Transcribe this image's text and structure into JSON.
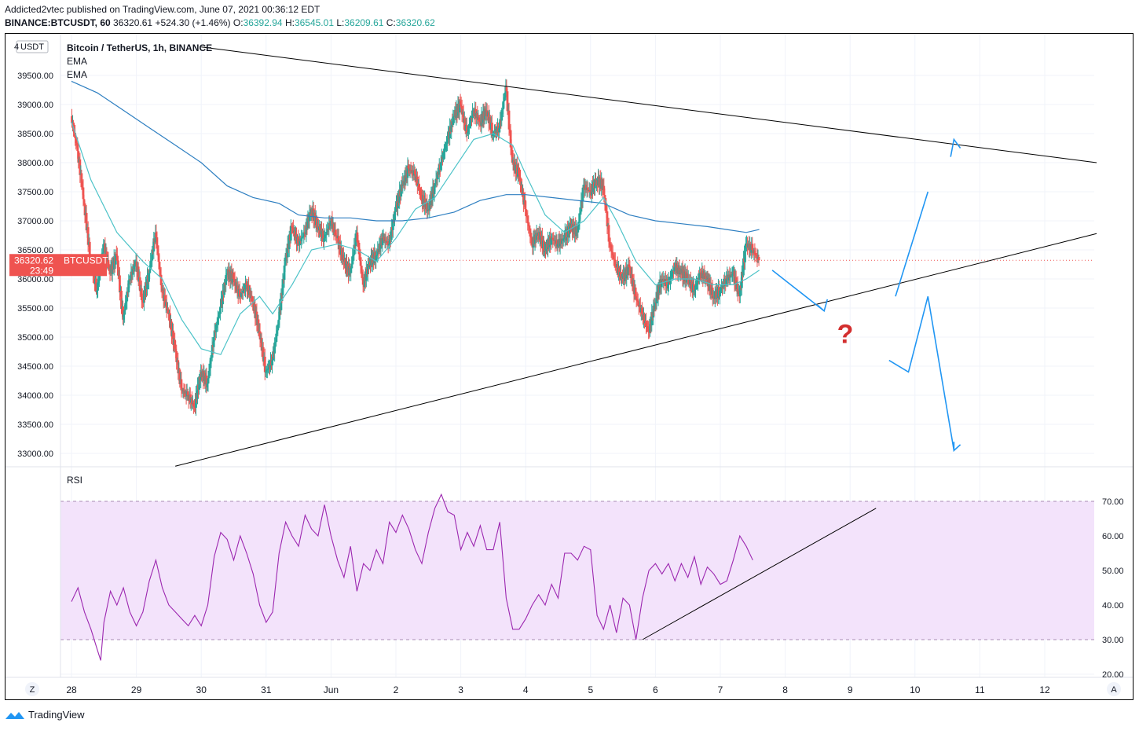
{
  "header": {
    "line1": "Addicted2vtec published on TradingView.com, June 07, 2021 00:36:12 EDT",
    "symbol": "BINANCE:BTCUSDT, 60",
    "last": "36320.61",
    "change": "+524.30 (+1.46%)",
    "o_label": "O:",
    "o": "36392.94",
    "h_label": "H:",
    "h": "36545.01",
    "l_label": "L:",
    "l": "36209.61",
    "c_label": "C:",
    "c": "36320.62"
  },
  "legend": {
    "title": "Bitcoin / TetherUS, 1h, BINANCE",
    "ema1": "EMA",
    "ema2": "EMA"
  },
  "price_axis": {
    "currency": "USDT",
    "top_partial": "4",
    "last_price": "36320.62",
    "last_symbol": "BTCUSDT",
    "countdown": "23:49"
  },
  "rsi": {
    "label": "RSI"
  },
  "footer": {
    "brand": "TradingView",
    "z_button": "Z",
    "a_button": "A"
  },
  "colors": {
    "up": "#26a69a",
    "down": "#ef5350",
    "ema_fast": "#4dc3c8",
    "ema_slow": "#2e7fc1",
    "rsi_line": "#9c27b0",
    "rsi_band": "#f3e3fb",
    "projection": "#2196f3",
    "question": "#d32f2f"
  },
  "chart_data": [
    {
      "type": "candlestick",
      "title": "Bitcoin / TetherUS, 1h, BINANCE",
      "ylabel": "USDT",
      "ylim": [
        32800,
        39900
      ],
      "x_ticks": [
        "28",
        "29",
        "30",
        "31",
        "Jun",
        "2",
        "3",
        "4",
        "5",
        "6",
        "7",
        "8",
        "9",
        "10",
        "11",
        "12"
      ],
      "y_ticks": [
        "33000.00",
        "33500.00",
        "34000.00",
        "34500.00",
        "35000.00",
        "35500.00",
        "36000.00",
        "36500.00",
        "37000.00",
        "37500.00",
        "38000.00",
        "38500.00",
        "39000.00",
        "39500.00"
      ],
      "close_path": [
        [
          27.9,
          38800
        ],
        [
          28.0,
          38200
        ],
        [
          28.1,
          37300
        ],
        [
          28.2,
          36300
        ],
        [
          28.3,
          35800
        ],
        [
          28.4,
          36600
        ],
        [
          28.5,
          36100
        ],
        [
          28.6,
          36400
        ],
        [
          28.7,
          35300
        ],
        [
          28.8,
          36000
        ],
        [
          28.9,
          36300
        ],
        [
          29.0,
          35600
        ],
        [
          29.1,
          36100
        ],
        [
          29.2,
          36800
        ],
        [
          29.3,
          35800
        ],
        [
          29.4,
          35400
        ],
        [
          29.5,
          34800
        ],
        [
          29.6,
          34100
        ],
        [
          29.7,
          34000
        ],
        [
          29.8,
          33800
        ],
        [
          29.9,
          34400
        ],
        [
          30.0,
          34200
        ],
        [
          30.1,
          35000
        ],
        [
          30.2,
          35500
        ],
        [
          30.3,
          36100
        ],
        [
          30.4,
          36000
        ],
        [
          30.5,
          35700
        ],
        [
          30.6,
          35900
        ],
        [
          30.7,
          35600
        ],
        [
          30.8,
          35100
        ],
        [
          30.9,
          34400
        ],
        [
          31.0,
          34600
        ],
        [
          31.1,
          35300
        ],
        [
          31.2,
          36300
        ],
        [
          31.3,
          36900
        ],
        [
          31.4,
          36600
        ],
        [
          31.5,
          36800
        ],
        [
          31.6,
          37200
        ],
        [
          31.7,
          36900
        ],
        [
          31.8,
          36700
        ],
        [
          31.9,
          37000
        ],
        [
          32.0,
          36700
        ],
        [
          32.1,
          36300
        ],
        [
          32.2,
          36100
        ],
        [
          32.3,
          36800
        ],
        [
          32.4,
          35900
        ],
        [
          32.5,
          36300
        ],
        [
          32.6,
          36400
        ],
        [
          32.7,
          36700
        ],
        [
          32.8,
          36600
        ],
        [
          32.9,
          37200
        ],
        [
          33.0,
          37600
        ],
        [
          33.1,
          37900
        ],
        [
          33.2,
          37800
        ],
        [
          33.3,
          37400
        ],
        [
          33.4,
          37200
        ],
        [
          33.5,
          37600
        ],
        [
          33.6,
          38000
        ],
        [
          33.7,
          38400
        ],
        [
          33.8,
          38800
        ],
        [
          33.9,
          39000
        ],
        [
          34.0,
          38500
        ],
        [
          34.1,
          38900
        ],
        [
          34.2,
          38700
        ],
        [
          34.3,
          38900
        ],
        [
          34.4,
          38500
        ],
        [
          34.5,
          38600
        ],
        [
          34.6,
          39300
        ],
        [
          34.7,
          38000
        ],
        [
          34.8,
          37800
        ],
        [
          34.9,
          37200
        ],
        [
          35.0,
          36600
        ],
        [
          35.1,
          36800
        ],
        [
          35.2,
          36500
        ],
        [
          35.3,
          36700
        ],
        [
          35.4,
          36600
        ],
        [
          35.5,
          36700
        ],
        [
          35.6,
          36900
        ],
        [
          35.7,
          36800
        ],
        [
          35.8,
          37600
        ],
        [
          35.9,
          37500
        ],
        [
          36.0,
          37700
        ],
        [
          36.1,
          37600
        ],
        [
          36.2,
          36600
        ],
        [
          36.3,
          36200
        ],
        [
          36.4,
          36000
        ],
        [
          36.5,
          36200
        ],
        [
          36.6,
          35700
        ],
        [
          36.7,
          35400
        ],
        [
          36.8,
          35100
        ],
        [
          36.9,
          35600
        ],
        [
          37.0,
          36000
        ],
        [
          37.1,
          35900
        ],
        [
          37.2,
          36200
        ],
        [
          37.3,
          36100
        ],
        [
          37.4,
          36000
        ],
        [
          37.5,
          35800
        ],
        [
          37.6,
          36100
        ],
        [
          37.7,
          36000
        ],
        [
          37.8,
          35700
        ],
        [
          37.9,
          35800
        ],
        [
          38.0,
          36000
        ],
        [
          38.1,
          36100
        ],
        [
          38.2,
          35700
        ],
        [
          38.3,
          36600
        ],
        [
          38.4,
          36500
        ],
        [
          38.5,
          36320
        ]
      ],
      "ema_fast_path": [
        [
          27.9,
          38700
        ],
        [
          28.2,
          37700
        ],
        [
          28.6,
          36800
        ],
        [
          29.0,
          36300
        ],
        [
          29.3,
          36000
        ],
        [
          29.6,
          35300
        ],
        [
          29.9,
          34800
        ],
        [
          30.2,
          34700
        ],
        [
          30.5,
          35400
        ],
        [
          30.8,
          35700
        ],
        [
          31.0,
          35400
        ],
        [
          31.3,
          35900
        ],
        [
          31.6,
          36500
        ],
        [
          32.0,
          36600
        ],
        [
          32.3,
          36500
        ],
        [
          32.6,
          36300
        ],
        [
          32.9,
          36700
        ],
        [
          33.2,
          37200
        ],
        [
          33.5,
          37400
        ],
        [
          33.8,
          37900
        ],
        [
          34.1,
          38400
        ],
        [
          34.4,
          38500
        ],
        [
          34.7,
          38300
        ],
        [
          34.9,
          37800
        ],
        [
          35.2,
          37100
        ],
        [
          35.5,
          36800
        ],
        [
          35.8,
          37000
        ],
        [
          36.1,
          37400
        ],
        [
          36.3,
          37000
        ],
        [
          36.6,
          36300
        ],
        [
          36.9,
          35900
        ],
        [
          37.2,
          36000
        ],
        [
          37.5,
          36000
        ],
        [
          37.8,
          35900
        ],
        [
          38.1,
          35900
        ],
        [
          38.3,
          36000
        ],
        [
          38.5,
          36150
        ]
      ],
      "ema_slow_path": [
        [
          27.9,
          39400
        ],
        [
          28.3,
          39200
        ],
        [
          28.7,
          38900
        ],
        [
          29.1,
          38600
        ],
        [
          29.5,
          38300
        ],
        [
          29.9,
          38000
        ],
        [
          30.3,
          37600
        ],
        [
          30.7,
          37400
        ],
        [
          31.1,
          37300
        ],
        [
          31.4,
          37100
        ],
        [
          31.8,
          37050
        ],
        [
          32.2,
          37050
        ],
        [
          32.6,
          37000
        ],
        [
          33.0,
          37000
        ],
        [
          33.4,
          37050
        ],
        [
          33.8,
          37150
        ],
        [
          34.2,
          37350
        ],
        [
          34.6,
          37450
        ],
        [
          34.9,
          37450
        ],
        [
          35.3,
          37400
        ],
        [
          35.7,
          37350
        ],
        [
          36.1,
          37300
        ],
        [
          36.5,
          37100
        ],
        [
          36.9,
          37000
        ],
        [
          37.3,
          36950
        ],
        [
          37.7,
          36900
        ],
        [
          38.0,
          36850
        ],
        [
          38.3,
          36800
        ],
        [
          38.5,
          36850
        ]
      ],
      "trendlines": [
        {
          "name": "upper-resistance",
          "from": [
            29.9,
            39990
          ],
          "to": [
            43.7,
            38000
          ]
        },
        {
          "name": "lower-support",
          "from": [
            29.5,
            32780
          ],
          "to": [
            43.7,
            36780
          ]
        }
      ],
      "projection_paths": [
        [
          [
            38.7,
            36150
          ],
          [
            39.5,
            35450
          ],
          [
            39.4,
            35550
          ],
          [
            39.5,
            35450
          ],
          [
            39.55,
            35650
          ]
        ],
        [
          [
            40.6,
            35700
          ],
          [
            41.1,
            37500
          ]
        ],
        [
          [
            41.45,
            38100
          ],
          [
            41.5,
            38400
          ],
          [
            41.6,
            38250
          ]
        ],
        [
          [
            40.5,
            34600
          ],
          [
            40.8,
            34400
          ],
          [
            41.1,
            35700
          ],
          [
            41.5,
            33050
          ]
        ],
        [
          [
            41.5,
            33200
          ],
          [
            41.5,
            33050
          ],
          [
            41.6,
            33150
          ]
        ]
      ],
      "annotation": "?"
    },
    {
      "type": "line",
      "title": "RSI",
      "ylim": [
        18,
        73
      ],
      "y_ticks": [
        "20.00",
        "30.00",
        "40.00",
        "50.00",
        "60.00",
        "70.00"
      ],
      "bands": [
        30,
        70
      ],
      "values_path": [
        [
          27.9,
          41
        ],
        [
          28.0,
          45
        ],
        [
          28.1,
          38
        ],
        [
          28.2,
          33
        ],
        [
          28.3,
          27
        ],
        [
          28.35,
          24
        ],
        [
          28.4,
          35
        ],
        [
          28.5,
          44
        ],
        [
          28.6,
          40
        ],
        [
          28.7,
          45
        ],
        [
          28.8,
          38
        ],
        [
          28.9,
          34
        ],
        [
          29.0,
          38
        ],
        [
          29.1,
          47
        ],
        [
          29.2,
          53
        ],
        [
          29.3,
          45
        ],
        [
          29.4,
          40
        ],
        [
          29.5,
          38
        ],
        [
          29.6,
          36
        ],
        [
          29.7,
          34
        ],
        [
          29.8,
          37
        ],
        [
          29.9,
          34
        ],
        [
          30.0,
          40
        ],
        [
          30.1,
          54
        ],
        [
          30.2,
          61
        ],
        [
          30.3,
          59
        ],
        [
          30.4,
          53
        ],
        [
          30.5,
          60
        ],
        [
          30.6,
          55
        ],
        [
          30.7,
          49
        ],
        [
          30.8,
          40
        ],
        [
          30.9,
          35
        ],
        [
          31.0,
          38
        ],
        [
          31.1,
          55
        ],
        [
          31.2,
          64
        ],
        [
          31.3,
          60
        ],
        [
          31.4,
          57
        ],
        [
          31.5,
          66
        ],
        [
          31.6,
          62
        ],
        [
          31.7,
          60
        ],
        [
          31.8,
          69
        ],
        [
          31.9,
          60
        ],
        [
          32.0,
          53
        ],
        [
          32.1,
          48
        ],
        [
          32.2,
          57
        ],
        [
          32.3,
          44
        ],
        [
          32.4,
          52
        ],
        [
          32.5,
          50
        ],
        [
          32.6,
          56
        ],
        [
          32.7,
          52
        ],
        [
          32.8,
          64
        ],
        [
          32.9,
          61
        ],
        [
          33.0,
          66
        ],
        [
          33.1,
          62
        ],
        [
          33.2,
          56
        ],
        [
          33.3,
          52
        ],
        [
          33.4,
          61
        ],
        [
          33.5,
          68
        ],
        [
          33.6,
          72
        ],
        [
          33.7,
          67
        ],
        [
          33.8,
          66
        ],
        [
          33.9,
          56
        ],
        [
          34.0,
          61
        ],
        [
          34.1,
          57
        ],
        [
          34.2,
          63
        ],
        [
          34.3,
          56
        ],
        [
          34.4,
          56
        ],
        [
          34.5,
          64
        ],
        [
          34.6,
          42
        ],
        [
          34.7,
          33
        ],
        [
          34.8,
          33
        ],
        [
          34.9,
          36
        ],
        [
          35.0,
          40
        ],
        [
          35.1,
          43
        ],
        [
          35.2,
          40
        ],
        [
          35.3,
          46
        ],
        [
          35.4,
          42
        ],
        [
          35.5,
          55
        ],
        [
          35.6,
          55
        ],
        [
          35.7,
          53
        ],
        [
          35.8,
          57
        ],
        [
          35.9,
          56
        ],
        [
          36.0,
          37
        ],
        [
          36.1,
          33
        ],
        [
          36.2,
          40
        ],
        [
          36.3,
          32
        ],
        [
          36.4,
          42
        ],
        [
          36.5,
          40
        ],
        [
          36.6,
          30
        ],
        [
          36.7,
          42
        ],
        [
          36.8,
          50
        ],
        [
          36.9,
          52
        ],
        [
          37.0,
          49
        ],
        [
          37.1,
          52
        ],
        [
          37.2,
          47
        ],
        [
          37.3,
          52
        ],
        [
          37.4,
          48
        ],
        [
          37.5,
          54
        ],
        [
          37.6,
          46
        ],
        [
          37.7,
          51
        ],
        [
          37.8,
          49
        ],
        [
          37.9,
          46
        ],
        [
          38.0,
          47
        ],
        [
          38.1,
          53
        ],
        [
          38.2,
          60
        ],
        [
          38.3,
          57
        ],
        [
          38.4,
          53
        ]
      ],
      "trendline": {
        "from": [
          36.7,
          30
        ],
        "to": [
          40.3,
          68
        ]
      }
    }
  ]
}
